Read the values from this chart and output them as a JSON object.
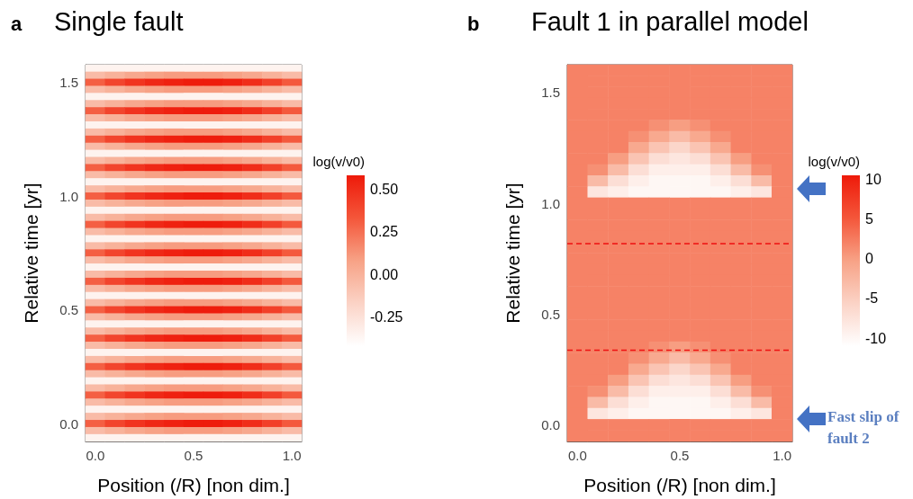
{
  "chart_data": [
    {
      "type": "heatmap",
      "title": "Single fault",
      "annotations": [
        "a"
      ],
      "xlabel": "Position (/R) [non dim.]",
      "ylabel": "Relative time [yr]",
      "clabel": "log(v/v0)",
      "categories": [
        "0.0",
        null,
        null,
        null,
        null,
        "0.5",
        null,
        null,
        null,
        null,
        "1.0"
      ],
      "y_categories": [
        null,
        null,
        "1.5",
        null,
        null,
        null,
        null,
        null,
        null,
        null,
        null,
        null,
        null,
        null,
        null,
        null,
        null,
        null,
        "1.0",
        null,
        null,
        null,
        null,
        null,
        null,
        null,
        null,
        null,
        null,
        null,
        null,
        null,
        null,
        null,
        "0.5",
        null,
        null,
        null,
        null,
        null,
        null,
        null,
        null,
        null,
        null,
        null,
        null,
        null,
        null,
        null,
        "0.0",
        null,
        null
      ],
      "clim": [
        -0.42,
        0.58
      ],
      "cticks": [
        {
          "value": 0.5,
          "label": "0.50"
        },
        {
          "value": 0.25,
          "label": "0.25"
        },
        {
          "value": 0,
          "label": "0.00"
        },
        {
          "value": -0.25,
          "label": "-0.25"
        }
      ],
      "cells": [
        [
          -0.35,
          -0.35,
          -0.35,
          -0.35,
          -0.35,
          -0.35,
          -0.35,
          -0.35,
          -0.35,
          -0.35,
          -0.35
        ],
        [
          -0.05,
          0,
          0.05,
          0.08,
          0.1,
          0.1,
          0.1,
          0.08,
          0.05,
          0,
          -0.05
        ],
        [
          0.3,
          0.4,
          0.47,
          0.52,
          0.55,
          0.57,
          0.57,
          0.55,
          0.5,
          0.42,
          0.32
        ],
        [
          -0.05,
          0,
          0.05,
          0.08,
          0.1,
          0.1,
          0.1,
          0.08,
          0.05,
          0,
          -0.05
        ],
        [
          -0.35,
          -0.35,
          -0.35,
          -0.35,
          -0.35,
          -0.35,
          -0.35,
          -0.35,
          -0.35,
          -0.35,
          -0.35
        ],
        [
          -0.05,
          0,
          0.05,
          0.08,
          0.1,
          0.1,
          0.1,
          0.08,
          0.05,
          0,
          -0.05
        ],
        [
          0.3,
          0.4,
          0.47,
          0.52,
          0.55,
          0.57,
          0.57,
          0.55,
          0.5,
          0.42,
          0.32
        ],
        [
          -0.05,
          0,
          0.05,
          0.08,
          0.1,
          0.1,
          0.1,
          0.08,
          0.05,
          0,
          -0.05
        ],
        [
          -0.35,
          -0.35,
          -0.35,
          -0.35,
          -0.35,
          -0.35,
          -0.35,
          -0.35,
          -0.35,
          -0.35,
          -0.35
        ],
        [
          -0.05,
          0,
          0.05,
          0.08,
          0.1,
          0.1,
          0.1,
          0.08,
          0.05,
          0,
          -0.05
        ],
        [
          0.3,
          0.4,
          0.47,
          0.52,
          0.55,
          0.57,
          0.57,
          0.55,
          0.5,
          0.42,
          0.32
        ],
        [
          -0.05,
          0,
          0.05,
          0.08,
          0.1,
          0.1,
          0.1,
          0.08,
          0.05,
          0,
          -0.05
        ],
        [
          -0.35,
          -0.35,
          -0.35,
          -0.35,
          -0.35,
          -0.35,
          -0.35,
          -0.35,
          -0.35,
          -0.35,
          -0.35
        ],
        [
          -0.05,
          0,
          0.05,
          0.08,
          0.1,
          0.1,
          0.1,
          0.08,
          0.05,
          0,
          -0.05
        ],
        [
          0.3,
          0.4,
          0.47,
          0.52,
          0.55,
          0.57,
          0.57,
          0.55,
          0.5,
          0.42,
          0.32
        ],
        [
          -0.05,
          0,
          0.05,
          0.08,
          0.1,
          0.1,
          0.1,
          0.08,
          0.05,
          0,
          -0.05
        ],
        [
          -0.35,
          -0.35,
          -0.35,
          -0.35,
          -0.35,
          -0.35,
          -0.35,
          -0.35,
          -0.35,
          -0.35,
          -0.35
        ],
        [
          -0.05,
          0,
          0.05,
          0.08,
          0.1,
          0.1,
          0.1,
          0.08,
          0.05,
          0,
          -0.05
        ],
        [
          0.3,
          0.4,
          0.47,
          0.52,
          0.55,
          0.57,
          0.57,
          0.55,
          0.5,
          0.42,
          0.32
        ],
        [
          -0.05,
          0,
          0.05,
          0.08,
          0.1,
          0.1,
          0.1,
          0.08,
          0.05,
          0,
          -0.05
        ],
        [
          -0.35,
          -0.35,
          -0.35,
          -0.35,
          -0.35,
          -0.35,
          -0.35,
          -0.35,
          -0.35,
          -0.35,
          -0.35
        ],
        [
          -0.05,
          0,
          0.05,
          0.08,
          0.1,
          0.1,
          0.1,
          0.08,
          0.05,
          0,
          -0.05
        ],
        [
          0.3,
          0.4,
          0.47,
          0.52,
          0.55,
          0.57,
          0.57,
          0.55,
          0.5,
          0.42,
          0.32
        ],
        [
          -0.05,
          0,
          0.05,
          0.08,
          0.1,
          0.1,
          0.1,
          0.08,
          0.05,
          0,
          -0.05
        ],
        [
          -0.35,
          -0.35,
          -0.35,
          -0.35,
          -0.35,
          -0.35,
          -0.35,
          -0.35,
          -0.35,
          -0.35,
          -0.35
        ],
        [
          -0.05,
          0,
          0.05,
          0.08,
          0.1,
          0.1,
          0.1,
          0.08,
          0.05,
          0,
          -0.05
        ],
        [
          0.3,
          0.4,
          0.47,
          0.52,
          0.55,
          0.57,
          0.57,
          0.55,
          0.5,
          0.42,
          0.32
        ],
        [
          -0.05,
          0,
          0.05,
          0.08,
          0.1,
          0.1,
          0.1,
          0.08,
          0.05,
          0,
          -0.05
        ],
        [
          -0.35,
          -0.35,
          -0.35,
          -0.35,
          -0.35,
          -0.35,
          -0.35,
          -0.35,
          -0.35,
          -0.35,
          -0.35
        ],
        [
          -0.05,
          0,
          0.05,
          0.08,
          0.1,
          0.1,
          0.1,
          0.08,
          0.05,
          0,
          -0.05
        ],
        [
          0.3,
          0.4,
          0.47,
          0.52,
          0.55,
          0.57,
          0.57,
          0.55,
          0.5,
          0.42,
          0.32
        ],
        [
          -0.05,
          0,
          0.05,
          0.08,
          0.1,
          0.1,
          0.1,
          0.08,
          0.05,
          0,
          -0.05
        ],
        [
          -0.35,
          -0.35,
          -0.35,
          -0.35,
          -0.35,
          -0.35,
          -0.35,
          -0.35,
          -0.35,
          -0.35,
          -0.35
        ],
        [
          -0.05,
          0,
          0.05,
          0.08,
          0.1,
          0.1,
          0.1,
          0.08,
          0.05,
          0,
          -0.05
        ],
        [
          0.3,
          0.4,
          0.47,
          0.52,
          0.55,
          0.57,
          0.57,
          0.55,
          0.5,
          0.42,
          0.32
        ],
        [
          -0.05,
          0,
          0.05,
          0.08,
          0.1,
          0.1,
          0.1,
          0.08,
          0.05,
          0,
          -0.05
        ],
        [
          -0.35,
          -0.35,
          -0.35,
          -0.35,
          -0.35,
          -0.35,
          -0.35,
          -0.35,
          -0.35,
          -0.35,
          -0.35
        ],
        [
          -0.05,
          0,
          0.05,
          0.08,
          0.1,
          0.1,
          0.1,
          0.08,
          0.05,
          0,
          -0.05
        ],
        [
          0.3,
          0.4,
          0.47,
          0.52,
          0.55,
          0.57,
          0.57,
          0.55,
          0.5,
          0.42,
          0.32
        ],
        [
          -0.05,
          0,
          0.05,
          0.08,
          0.1,
          0.1,
          0.1,
          0.08,
          0.05,
          0,
          -0.05
        ],
        [
          -0.35,
          -0.35,
          -0.35,
          -0.35,
          -0.35,
          -0.35,
          -0.35,
          -0.35,
          -0.35,
          -0.35,
          -0.35
        ],
        [
          -0.05,
          0,
          0.05,
          0.08,
          0.1,
          0.1,
          0.1,
          0.08,
          0.05,
          0,
          -0.05
        ],
        [
          0.3,
          0.4,
          0.47,
          0.52,
          0.55,
          0.57,
          0.57,
          0.55,
          0.5,
          0.42,
          0.32
        ],
        [
          -0.05,
          0,
          0.05,
          0.08,
          0.1,
          0.1,
          0.1,
          0.08,
          0.05,
          0,
          -0.05
        ],
        [
          -0.35,
          -0.35,
          -0.35,
          -0.35,
          -0.35,
          -0.35,
          -0.35,
          -0.35,
          -0.35,
          -0.35,
          -0.35
        ],
        [
          -0.05,
          0,
          0.05,
          0.08,
          0.1,
          0.1,
          0.1,
          0.08,
          0.05,
          0,
          -0.05
        ],
        [
          0.3,
          0.4,
          0.47,
          0.52,
          0.55,
          0.57,
          0.57,
          0.55,
          0.5,
          0.42,
          0.32
        ],
        [
          -0.05,
          0,
          0.05,
          0.08,
          0.1,
          0.1,
          0.1,
          0.08,
          0.05,
          0,
          -0.05
        ],
        [
          -0.35,
          -0.35,
          -0.35,
          -0.35,
          -0.35,
          -0.35,
          -0.35,
          -0.35,
          -0.35,
          -0.35,
          -0.35
        ],
        [
          -0.05,
          0,
          0.05,
          0.08,
          0.1,
          0.1,
          0.1,
          0.08,
          0.05,
          0,
          -0.05
        ],
        [
          0.3,
          0.4,
          0.47,
          0.52,
          0.55,
          0.57,
          0.57,
          0.55,
          0.5,
          0.42,
          0.32
        ],
        [
          -0.05,
          0,
          0.05,
          0.08,
          0.1,
          0.1,
          0.1,
          0.08,
          0.05,
          0,
          -0.05
        ],
        [
          -0.35,
          -0.35,
          -0.35,
          -0.35,
          -0.35,
          -0.35,
          -0.35,
          -0.35,
          -0.35,
          -0.35,
          -0.35
        ]
      ]
    },
    {
      "type": "heatmap",
      "title": "Fault 1 in parallel model",
      "annotations": [
        "b",
        "Fast slip of fault 2"
      ],
      "xlabel": "Position (/R) [non dim.]",
      "ylabel": "Relative time [yr]",
      "clabel": "log(v/v0)",
      "categories": [
        "0.0",
        null,
        null,
        null,
        null,
        "0.5",
        null,
        null,
        null,
        null,
        "1.0"
      ],
      "y_categories": [
        null,
        null,
        "1.5",
        null,
        null,
        null,
        null,
        null,
        null,
        null,
        null,
        null,
        "1.0",
        null,
        null,
        null,
        null,
        null,
        null,
        null,
        null,
        null,
        "0.5",
        null,
        null,
        null,
        null,
        null,
        null,
        null,
        null,
        null,
        "0.0",
        null
      ],
      "clim": [
        -11,
        10.5
      ],
      "cticks": [
        10,
        5,
        0,
        -5,
        -10
      ],
      "cells": [
        [
          2,
          2,
          2,
          2,
          2,
          2,
          2,
          2,
          2,
          2,
          2
        ],
        [
          2,
          2,
          2,
          2,
          2,
          2,
          2,
          2,
          2,
          2,
          2
        ],
        [
          2,
          2,
          2,
          2,
          2,
          2,
          2,
          2,
          2,
          2,
          2
        ],
        [
          2,
          2,
          2,
          2,
          2,
          2,
          2,
          2,
          2,
          2,
          2
        ],
        [
          2,
          2,
          2,
          2,
          2,
          2,
          2,
          2,
          2,
          2,
          2
        ],
        [
          2,
          2,
          2,
          2,
          1,
          0,
          1,
          2,
          2,
          2,
          2
        ],
        [
          2,
          2,
          2,
          1,
          -1,
          -3,
          -1,
          1,
          2,
          2,
          2
        ],
        [
          2,
          2,
          2,
          -1,
          -4,
          -6,
          -4,
          -1,
          2,
          2,
          2
        ],
        [
          2,
          2,
          0,
          -4,
          -7,
          -8,
          -7,
          -4,
          0,
          2,
          2
        ],
        [
          2,
          1,
          -3,
          -7,
          -9,
          -9,
          -9,
          -7,
          -3,
          1,
          2
        ],
        [
          2,
          -3,
          -7,
          -9,
          -10,
          -10,
          -10,
          -9,
          -7,
          -3,
          2
        ],
        [
          2,
          -8,
          -9,
          -10,
          -10,
          -10,
          -10,
          -10,
          -9,
          -8,
          2
        ],
        [
          2,
          2,
          2,
          2,
          2,
          2,
          2,
          2,
          2,
          2,
          2
        ],
        [
          2,
          2,
          2,
          2,
          2,
          2,
          2,
          2,
          2,
          2,
          2
        ],
        [
          2,
          2,
          2,
          2,
          2,
          2,
          2,
          2,
          2,
          2,
          2
        ],
        [
          2,
          2,
          2,
          2,
          2,
          2,
          2,
          2,
          2,
          2,
          2
        ],
        [
          2,
          2,
          2,
          2,
          2,
          2,
          2,
          2,
          2,
          2,
          2
        ],
        [
          2,
          2,
          2,
          2,
          2,
          2,
          2,
          2,
          2,
          2,
          2
        ],
        [
          2,
          2,
          2,
          2,
          2,
          2,
          2,
          2,
          2,
          2,
          2
        ],
        [
          2,
          2,
          2,
          2,
          2,
          2,
          2,
          2,
          2,
          2,
          2
        ],
        [
          2,
          2,
          2,
          2,
          2,
          2,
          2,
          2,
          2,
          2,
          2
        ],
        [
          2,
          2,
          2,
          2,
          2,
          2,
          2,
          2,
          2,
          2,
          2
        ],
        [
          2,
          2,
          2,
          2,
          2,
          2,
          2,
          2,
          2,
          2,
          2
        ],
        [
          2,
          2,
          2,
          2,
          2,
          2,
          2,
          2,
          2,
          2,
          2
        ],
        [
          2,
          2,
          2,
          2,
          2,
          2,
          2,
          2,
          2,
          2,
          2
        ],
        [
          2,
          2,
          2,
          2,
          1,
          0,
          1,
          2,
          2,
          2,
          2
        ],
        [
          2,
          2,
          2,
          1,
          -1,
          -3,
          -1,
          1,
          2,
          2,
          2
        ],
        [
          2,
          2,
          2,
          -1,
          -4,
          -6,
          -4,
          -1,
          2,
          2,
          2
        ],
        [
          2,
          2,
          0,
          -4,
          -7,
          -8,
          -7,
          -4,
          0,
          2,
          2
        ],
        [
          2,
          1,
          -3,
          -7,
          -9,
          -9,
          -9,
          -7,
          -3,
          1,
          2
        ],
        [
          2,
          -3,
          -7,
          -9,
          -10,
          -10,
          -10,
          -9,
          -7,
          -3,
          2
        ],
        [
          2,
          -8,
          -9,
          -10,
          -10,
          -10,
          -10,
          -10,
          -9,
          -8,
          2
        ],
        [
          2,
          2,
          2,
          2,
          2,
          2,
          2,
          2,
          2,
          2,
          2
        ],
        [
          2,
          2,
          2,
          2,
          2,
          2,
          2,
          2,
          2,
          2,
          2
        ]
      ]
    }
  ]
}
